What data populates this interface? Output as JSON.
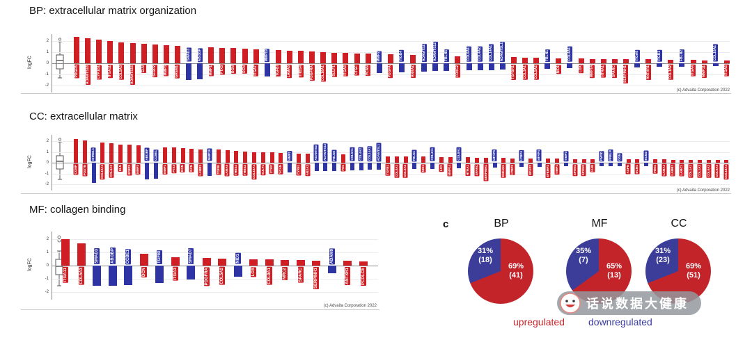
{
  "colors": {
    "up": "#d01f24",
    "down": "#2e34a3",
    "pie_up": "#c3242a",
    "pie_down": "#3c3c99",
    "legend_up": "#c9262c",
    "legend_down": "#3a3aa0"
  },
  "panel_label": "c",
  "legend": {
    "up": "upregulated",
    "down": "downregulated"
  },
  "watermark": {
    "text": "话说数据大健康"
  },
  "chart_data": [
    {
      "type": "bar",
      "id": "bp",
      "title": "BP: extracellular matrix organization",
      "ylabel": "logFC",
      "ylim": [
        -2.5,
        2.5
      ],
      "yticks": [
        2,
        1,
        0,
        -1,
        -2
      ],
      "copyright": "(c) Advaita Corporation 2022",
      "series": [
        {
          "n": "PDGFB",
          "v": 2.4,
          "d": "up"
        },
        {
          "n": "ADAMTS18",
          "v": 2.25,
          "d": "up"
        },
        {
          "n": "CYP1B1",
          "v": 2.1,
          "d": "up"
        },
        {
          "n": "ITGA11",
          "v": 2.0,
          "d": "up"
        },
        {
          "n": "COL5A3",
          "v": 1.9,
          "d": "up"
        },
        {
          "n": "ADAMTS15",
          "v": 1.8,
          "d": "up"
        },
        {
          "n": "ELN",
          "v": 1.75,
          "d": "up"
        },
        {
          "n": "SFRP2",
          "v": 1.7,
          "d": "up"
        },
        {
          "n": "MMP3",
          "v": 1.6,
          "d": "up"
        },
        {
          "n": "GREM1",
          "v": 1.55,
          "d": "up"
        },
        {
          "n": "SMAD3",
          "v": -1.5,
          "d": "down"
        },
        {
          "n": "ABI3BP",
          "v": -1.45,
          "d": "down"
        },
        {
          "n": "MMP1",
          "v": 1.45,
          "d": "up"
        },
        {
          "n": "PTX3",
          "v": 1.4,
          "d": "up"
        },
        {
          "n": "BGN",
          "v": 1.35,
          "d": "up"
        },
        {
          "n": "DCN",
          "v": 1.3,
          "d": "up"
        },
        {
          "n": "ITGA7",
          "v": 1.25,
          "d": "up"
        },
        {
          "n": "MMP19",
          "v": -1.2,
          "d": "down"
        },
        {
          "n": "TGFBI",
          "v": 1.2,
          "d": "up"
        },
        {
          "n": "LAMA5",
          "v": 1.15,
          "d": "up"
        },
        {
          "n": "THBS4",
          "v": 1.1,
          "d": "up"
        },
        {
          "n": "PDGFRA",
          "v": 1.05,
          "d": "up"
        },
        {
          "n": "COL16A1",
          "v": 1.0,
          "d": "up"
        },
        {
          "n": "SULF1",
          "v": 0.95,
          "d": "up"
        },
        {
          "n": "ITGA3",
          "v": 0.95,
          "d": "up"
        },
        {
          "n": "CTGF",
          "v": 0.9,
          "d": "up"
        },
        {
          "n": "VCAN",
          "v": 0.85,
          "d": "up"
        },
        {
          "n": "MMP2",
          "v": -0.85,
          "d": "down"
        },
        {
          "n": "PDGFA",
          "v": 0.8,
          "d": "up"
        },
        {
          "n": "ITGB4",
          "v": -0.8,
          "d": "down"
        },
        {
          "n": "ANXA2",
          "v": 0.75,
          "d": "up"
        },
        {
          "n": "ADAMTS2",
          "v": -0.75,
          "d": "down"
        },
        {
          "n": "ADAMTS12",
          "v": -0.7,
          "d": "down"
        },
        {
          "n": "FBLN5",
          "v": -0.7,
          "d": "down"
        },
        {
          "n": "FOXC2",
          "v": 0.65,
          "d": "up"
        },
        {
          "n": "COL6A1",
          "v": -0.65,
          "d": "down"
        },
        {
          "n": "COL4A2",
          "v": -0.6,
          "d": "down"
        },
        {
          "n": "COL14A1",
          "v": -0.6,
          "d": "down"
        },
        {
          "n": "ADAMTSL1",
          "v": -0.55,
          "d": "down"
        },
        {
          "n": "TGFBR1",
          "v": 0.55,
          "d": "up"
        },
        {
          "n": "COL3A1",
          "v": 0.5,
          "d": "up"
        },
        {
          "n": "COL5A2",
          "v": 0.5,
          "d": "up"
        },
        {
          "n": "FBLN1",
          "v": -0.5,
          "d": "down"
        },
        {
          "n": "NID1",
          "v": 0.45,
          "d": "up"
        },
        {
          "n": "COL4A1",
          "v": -0.45,
          "d": "down"
        },
        {
          "n": "LOX",
          "v": 0.45,
          "d": "up"
        },
        {
          "n": "MMP14",
          "v": 0.4,
          "d": "up"
        },
        {
          "n": "HTRA1",
          "v": 0.4,
          "d": "up"
        },
        {
          "n": "SPARC",
          "v": 0.4,
          "d": "up"
        },
        {
          "n": "SERPINH1",
          "v": 0.35,
          "d": "up"
        },
        {
          "n": "ITGA8",
          "v": -0.35,
          "d": "down"
        },
        {
          "n": "ANTXR1",
          "v": 0.35,
          "d": "up"
        },
        {
          "n": "ITGB1",
          "v": -0.3,
          "d": "down"
        },
        {
          "n": "COL1A2",
          "v": 0.3,
          "d": "up"
        },
        {
          "n": "FBLN2",
          "v": -0.3,
          "d": "down"
        },
        {
          "n": "ITGA4",
          "v": 0.3,
          "d": "up"
        },
        {
          "n": "MMP11",
          "v": 0.28,
          "d": "up"
        },
        {
          "n": "COL18A1",
          "v": -0.25,
          "d": "down"
        },
        {
          "n": "ITGA5",
          "v": 0.25,
          "d": "up"
        }
      ]
    },
    {
      "type": "bar",
      "id": "cc",
      "title": "CC: extracellular matrix",
      "ylabel": "logFC",
      "ylim": [
        -2.5,
        2.5
      ],
      "yticks": [
        2,
        1,
        0,
        -1,
        -2
      ],
      "copyright": "(c) Advaita Corporation 2022",
      "series": [
        {
          "n": "COMP",
          "v": 2.2,
          "d": "up"
        },
        {
          "n": "POSTN",
          "v": 2.05,
          "d": "up"
        },
        {
          "n": "CHRDL1",
          "v": -1.9,
          "d": "down"
        },
        {
          "n": "COL10A1",
          "v": 1.85,
          "d": "up"
        },
        {
          "n": "COL5A3",
          "v": 1.8,
          "d": "up"
        },
        {
          "n": "ELN",
          "v": 1.7,
          "d": "up"
        },
        {
          "n": "SFRP2",
          "v": 1.65,
          "d": "up"
        },
        {
          "n": "MMP3",
          "v": 1.6,
          "d": "up"
        },
        {
          "n": "ABI3BP",
          "v": -1.55,
          "d": "down"
        },
        {
          "n": "CCBE1",
          "v": -1.5,
          "d": "down"
        },
        {
          "n": "MMP1",
          "v": 1.45,
          "d": "up"
        },
        {
          "n": "PTX3",
          "v": 1.4,
          "d": "up"
        },
        {
          "n": "BGN",
          "v": 1.35,
          "d": "up"
        },
        {
          "n": "DCN",
          "v": 1.3,
          "d": "up"
        },
        {
          "n": "LAMB3",
          "v": 1.25,
          "d": "up"
        },
        {
          "n": "MMP19",
          "v": -1.2,
          "d": "down"
        },
        {
          "n": "TGFBI",
          "v": 1.2,
          "d": "up"
        },
        {
          "n": "LAMA5",
          "v": 1.15,
          "d": "up"
        },
        {
          "n": "THBS4",
          "v": 1.1,
          "d": "up"
        },
        {
          "n": "THBS2",
          "v": 1.05,
          "d": "up"
        },
        {
          "n": "COL16A1",
          "v": 1.0,
          "d": "up"
        },
        {
          "n": "SULF1",
          "v": 0.95,
          "d": "up"
        },
        {
          "n": "CTGF",
          "v": 0.95,
          "d": "up"
        },
        {
          "n": "VCAN",
          "v": 0.9,
          "d": "up"
        },
        {
          "n": "MMP2",
          "v": -0.9,
          "d": "down"
        },
        {
          "n": "CYR61",
          "v": 0.85,
          "d": "up"
        },
        {
          "n": "ANXA2",
          "v": 0.85,
          "d": "up"
        },
        {
          "n": "ADAMTS2",
          "v": -0.8,
          "d": "down"
        },
        {
          "n": "ADAMTS12",
          "v": -0.8,
          "d": "down"
        },
        {
          "n": "FBLN5",
          "v": -0.75,
          "d": "down"
        },
        {
          "n": "FN1",
          "v": 0.75,
          "d": "up"
        },
        {
          "n": "COL6A1",
          "v": -0.7,
          "d": "down"
        },
        {
          "n": "COL4A2",
          "v": -0.7,
          "d": "down"
        },
        {
          "n": "COL14A1",
          "v": -0.65,
          "d": "down"
        },
        {
          "n": "ADAMTSL1",
          "v": -0.65,
          "d": "down"
        },
        {
          "n": "TGFB1",
          "v": 0.6,
          "d": "up"
        },
        {
          "n": "COL3A1",
          "v": 0.6,
          "d": "up"
        },
        {
          "n": "COL5A2",
          "v": 0.6,
          "d": "up"
        },
        {
          "n": "FBLN1",
          "v": -0.55,
          "d": "down"
        },
        {
          "n": "NID1",
          "v": 0.55,
          "d": "up"
        },
        {
          "n": "COL4A1",
          "v": -0.55,
          "d": "down"
        },
        {
          "n": "LOX",
          "v": 0.5,
          "d": "up"
        },
        {
          "n": "MMP14",
          "v": 0.5,
          "d": "up"
        },
        {
          "n": "COL8A1",
          "v": -0.5,
          "d": "down"
        },
        {
          "n": "HTRA1",
          "v": 0.5,
          "d": "up"
        },
        {
          "n": "SPARC",
          "v": 0.45,
          "d": "up"
        },
        {
          "n": "SERPINH1",
          "v": 0.45,
          "d": "up"
        },
        {
          "n": "MFAP5",
          "v": -0.45,
          "d": "down"
        },
        {
          "n": "EMILIN1",
          "v": 0.45,
          "d": "up"
        },
        {
          "n": "LTBP2",
          "v": 0.4,
          "d": "up"
        },
        {
          "n": "LTBP4",
          "v": -0.4,
          "d": "down"
        },
        {
          "n": "MFAP2",
          "v": 0.4,
          "d": "up"
        },
        {
          "n": "MFAP4",
          "v": -0.4,
          "d": "down"
        },
        {
          "n": "EFEMP2",
          "v": 0.4,
          "d": "up"
        },
        {
          "n": "TIMP1",
          "v": 0.4,
          "d": "up"
        },
        {
          "n": "TIMP3",
          "v": -0.35,
          "d": "down"
        },
        {
          "n": "SPON1",
          "v": 0.35,
          "d": "up"
        },
        {
          "n": "SPON2",
          "v": 0.35,
          "d": "up"
        },
        {
          "n": "LUM",
          "v": 0.35,
          "d": "up"
        },
        {
          "n": "FMOD",
          "v": -0.35,
          "d": "down"
        },
        {
          "n": "PRELP",
          "v": -0.3,
          "d": "down"
        },
        {
          "n": "OGN",
          "v": -0.3,
          "d": "down"
        },
        {
          "n": "ASPN",
          "v": 0.3,
          "d": "up"
        },
        {
          "n": "ECM1",
          "v": 0.3,
          "d": "up"
        },
        {
          "n": "ECM2",
          "v": -0.3,
          "d": "down"
        },
        {
          "n": "FBN1",
          "v": 0.3,
          "d": "up"
        },
        {
          "n": "LAMA4",
          "v": 0.3,
          "d": "up"
        },
        {
          "n": "LAMB1",
          "v": 0.28,
          "d": "up"
        },
        {
          "n": "LAMC1",
          "v": 0.28,
          "d": "up"
        },
        {
          "n": "COL1A1",
          "v": 0.28,
          "d": "up"
        },
        {
          "n": "COL1A2",
          "v": 0.25,
          "d": "up"
        },
        {
          "n": "COL6A2",
          "v": 0.25,
          "d": "up"
        },
        {
          "n": "COL6A3",
          "v": 0.25,
          "d": "up"
        },
        {
          "n": "COL18A1",
          "v": 0.25,
          "d": "up"
        }
      ]
    },
    {
      "type": "bar",
      "id": "mf",
      "title": "MF: collagen binding",
      "ylabel": "logFC",
      "ylim": [
        -2.5,
        2.5
      ],
      "yticks": [
        2,
        1,
        0,
        -1,
        -2
      ],
      "copyright": "(c) Advaita Corporation 2022",
      "series": [
        {
          "n": "ITGA11",
          "v": 2.0,
          "d": "up"
        },
        {
          "n": "COL5A3",
          "v": 1.7,
          "d": "up"
        },
        {
          "n": "SMAD3",
          "v": -1.55,
          "d": "down"
        },
        {
          "n": "ABI3BP",
          "v": -1.5,
          "d": "down"
        },
        {
          "n": "CCBE1",
          "v": -1.45,
          "d": "down"
        },
        {
          "n": "DCN",
          "v": 0.9,
          "d": "up"
        },
        {
          "n": "TGFBI",
          "v": -1.3,
          "d": "down"
        },
        {
          "n": "ITGA3",
          "v": 0.65,
          "d": "up"
        },
        {
          "n": "SMAD7",
          "v": -1.05,
          "d": "down"
        },
        {
          "n": "PDGFRA",
          "v": 0.6,
          "d": "up"
        },
        {
          "n": "COL5A2",
          "v": 0.55,
          "d": "up"
        },
        {
          "n": "NID1",
          "v": -0.85,
          "d": "down"
        },
        {
          "n": "LOX",
          "v": 0.5,
          "d": "up"
        },
        {
          "n": "COL9A1",
          "v": 0.45,
          "d": "up"
        },
        {
          "n": "MRC2",
          "v": 0.42,
          "d": "up"
        },
        {
          "n": "SPARC",
          "v": 0.4,
          "d": "up"
        },
        {
          "n": "SERPINH1",
          "v": 0.38,
          "d": "up"
        },
        {
          "n": "ADAM9",
          "v": -0.6,
          "d": "down"
        },
        {
          "n": "ANTXR1",
          "v": 0.35,
          "d": "up"
        },
        {
          "n": "PCOLCE",
          "v": 0.32,
          "d": "up"
        }
      ]
    },
    {
      "type": "pie",
      "id": "pie-bp",
      "title": "BP",
      "slices": [
        {
          "name": "upregulated",
          "pct": 69,
          "count": 41,
          "pct_label": "69%",
          "count_label": "(41)"
        },
        {
          "name": "downregulated",
          "pct": 31,
          "count": 18,
          "pct_label": "31%",
          "count_label": "(18)"
        }
      ]
    },
    {
      "type": "pie",
      "id": "pie-mf",
      "title": "MF",
      "slices": [
        {
          "name": "upregulated",
          "pct": 65,
          "count": 13,
          "pct_label": "65%",
          "count_label": "(13)"
        },
        {
          "name": "downregulated",
          "pct": 35,
          "count": 7,
          "pct_label": "35%",
          "count_label": "(7)"
        }
      ]
    },
    {
      "type": "pie",
      "id": "pie-cc",
      "title": "CC",
      "slices": [
        {
          "name": "upregulated",
          "pct": 69,
          "count": 51,
          "pct_label": "69%",
          "count_label": "(51)"
        },
        {
          "name": "downregulated",
          "pct": 31,
          "count": 23,
          "pct_label": "31%",
          "count_label": "(23)"
        }
      ]
    }
  ]
}
